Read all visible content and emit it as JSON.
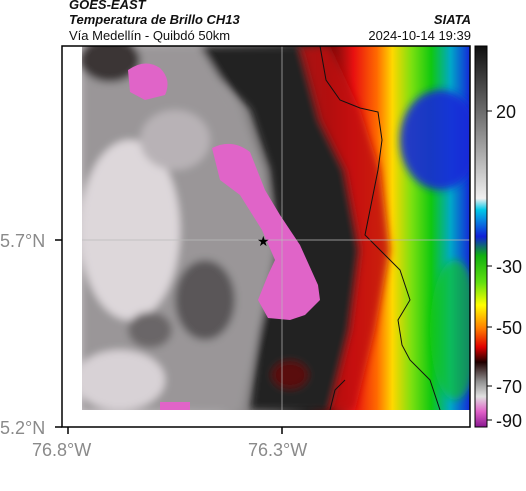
{
  "header": {
    "satellite": "GOES-EAST",
    "product": "Temperatura de Brillo CH13",
    "region": "Vía Medellín - Quibdó 50km",
    "org": "SIATA",
    "datetime": "2024-10-14 19:39"
  },
  "axes": {
    "y_ticks": [
      "5.7°N",
      "5.2°N"
    ],
    "x_ticks": [
      "76.8°W",
      "76.3°W"
    ]
  },
  "colorbar": {
    "tick_labels": [
      "20",
      "-30",
      "-50",
      "-70",
      "-90"
    ]
  },
  "colors": {
    "magenta": "#e064c8",
    "red": "#e81010",
    "green": "#10c810",
    "blue": "#1428d8"
  }
}
